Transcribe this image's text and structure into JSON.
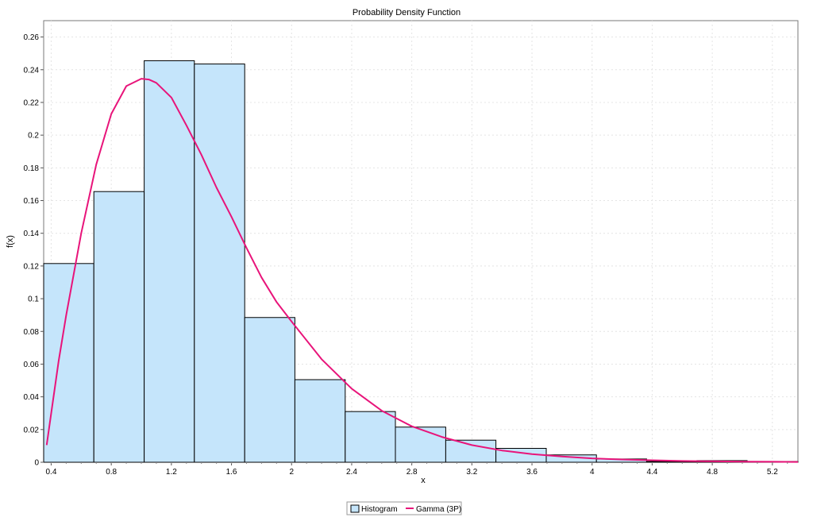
{
  "chart_data": {
    "type": "bar",
    "title": "Probability Density Function",
    "xlabel": "x",
    "ylabel": "f(x)",
    "xlim": [
      0.35,
      5.37
    ],
    "ylim": [
      0,
      0.27
    ],
    "x_ticks": [
      0.4,
      0.8,
      1.2,
      1.6,
      2,
      2.4,
      2.8,
      3.2,
      3.6,
      4,
      4.4,
      4.8,
      5.2
    ],
    "y_ticks": [
      0,
      0.02,
      0.04,
      0.06,
      0.08,
      0.1,
      0.12,
      0.14,
      0.16,
      0.18,
      0.2,
      0.22,
      0.24,
      0.26
    ],
    "grid": true,
    "legend_position": "bottom-center",
    "series": [
      {
        "name": "Histogram",
        "kind": "histogram",
        "color": "#c5e5fb",
        "bins": [
          {
            "x0": 0.35,
            "x1": 0.684,
            "value": 0.1215
          },
          {
            "x0": 0.684,
            "x1": 1.019,
            "value": 0.1655
          },
          {
            "x0": 1.019,
            "x1": 1.353,
            "value": 0.2455
          },
          {
            "x0": 1.353,
            "x1": 1.688,
            "value": 0.2435
          },
          {
            "x0": 1.688,
            "x1": 2.022,
            "value": 0.0885
          },
          {
            "x0": 2.022,
            "x1": 2.357,
            "value": 0.0505
          },
          {
            "x0": 2.357,
            "x1": 2.691,
            "value": 0.031
          },
          {
            "x0": 2.691,
            "x1": 3.026,
            "value": 0.0215
          },
          {
            "x0": 3.026,
            "x1": 3.36,
            "value": 0.0135
          },
          {
            "x0": 3.36,
            "x1": 3.695,
            "value": 0.0085
          },
          {
            "x0": 3.695,
            "x1": 4.029,
            "value": 0.0045
          },
          {
            "x0": 4.029,
            "x1": 4.363,
            "value": 0.002
          },
          {
            "x0": 4.363,
            "x1": 4.698,
            "value": 0.0005
          },
          {
            "x0": 4.698,
            "x1": 5.032,
            "value": 0.001
          },
          {
            "x0": 5.032,
            "x1": 5.37,
            "value": 0.0005
          }
        ]
      },
      {
        "name": "Gamma (3P)",
        "kind": "line",
        "color": "#e8147a",
        "x": [
          0.37,
          0.4,
          0.45,
          0.5,
          0.6,
          0.7,
          0.8,
          0.9,
          1.0,
          1.05,
          1.1,
          1.2,
          1.3,
          1.4,
          1.5,
          1.6,
          1.7,
          1.8,
          1.9,
          2.0,
          2.2,
          2.4,
          2.6,
          2.8,
          3.0,
          3.2,
          3.4,
          3.6,
          3.8,
          4.0,
          4.2,
          4.4,
          4.6,
          4.8,
          5.0,
          5.2,
          5.37
        ],
        "y": [
          0.0105,
          0.03,
          0.062,
          0.09,
          0.14,
          0.182,
          0.213,
          0.23,
          0.2345,
          0.234,
          0.232,
          0.223,
          0.206,
          0.188,
          0.168,
          0.15,
          0.131,
          0.113,
          0.098,
          0.086,
          0.063,
          0.045,
          0.0315,
          0.022,
          0.0155,
          0.0105,
          0.0072,
          0.005,
          0.0035,
          0.0024,
          0.0017,
          0.0012,
          0.0008,
          0.0006,
          0.0004,
          0.0003,
          0.0002
        ]
      }
    ]
  }
}
